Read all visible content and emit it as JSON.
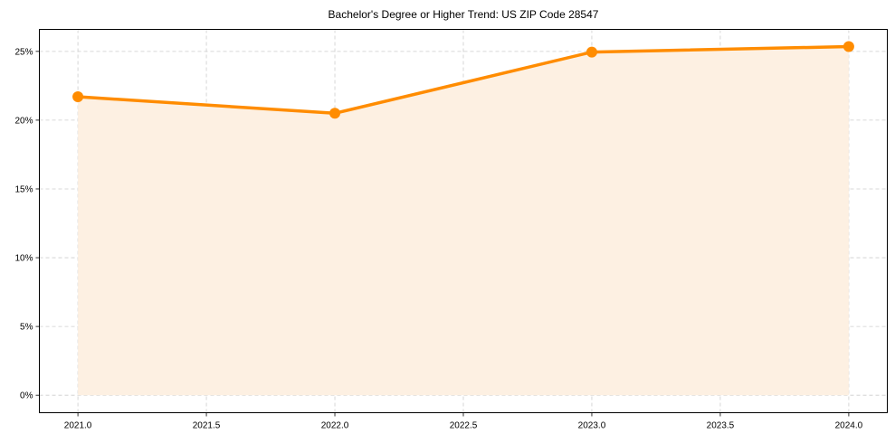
{
  "chart_data": {
    "type": "area",
    "title": "Bachelor's Degree or Higher Trend: US ZIP Code 28547",
    "xlabel": "",
    "ylabel": "",
    "x": [
      2021,
      2022,
      2023,
      2024
    ],
    "series": [
      {
        "name": "Bachelor's Degree or Higher",
        "values": [
          21.7,
          20.5,
          24.95,
          25.35
        ],
        "color": "#ff8c00",
        "fill": "#fdf0e2"
      }
    ],
    "x_ticks": [
      "2021.0",
      "2021.5",
      "2022.0",
      "2022.5",
      "2023.0",
      "2023.5",
      "2024.0"
    ],
    "x_tick_values": [
      2021.0,
      2021.5,
      2022.0,
      2022.5,
      2023.0,
      2023.5,
      2024.0
    ],
    "y_ticks": [
      "0%",
      "5%",
      "10%",
      "15%",
      "20%",
      "25%"
    ],
    "y_tick_values": [
      0,
      5,
      10,
      15,
      20,
      25
    ],
    "xlim": [
      2020.85,
      2024.15
    ],
    "ylim": [
      -1.27,
      26.6
    ],
    "grid": true,
    "legend": "none"
  }
}
